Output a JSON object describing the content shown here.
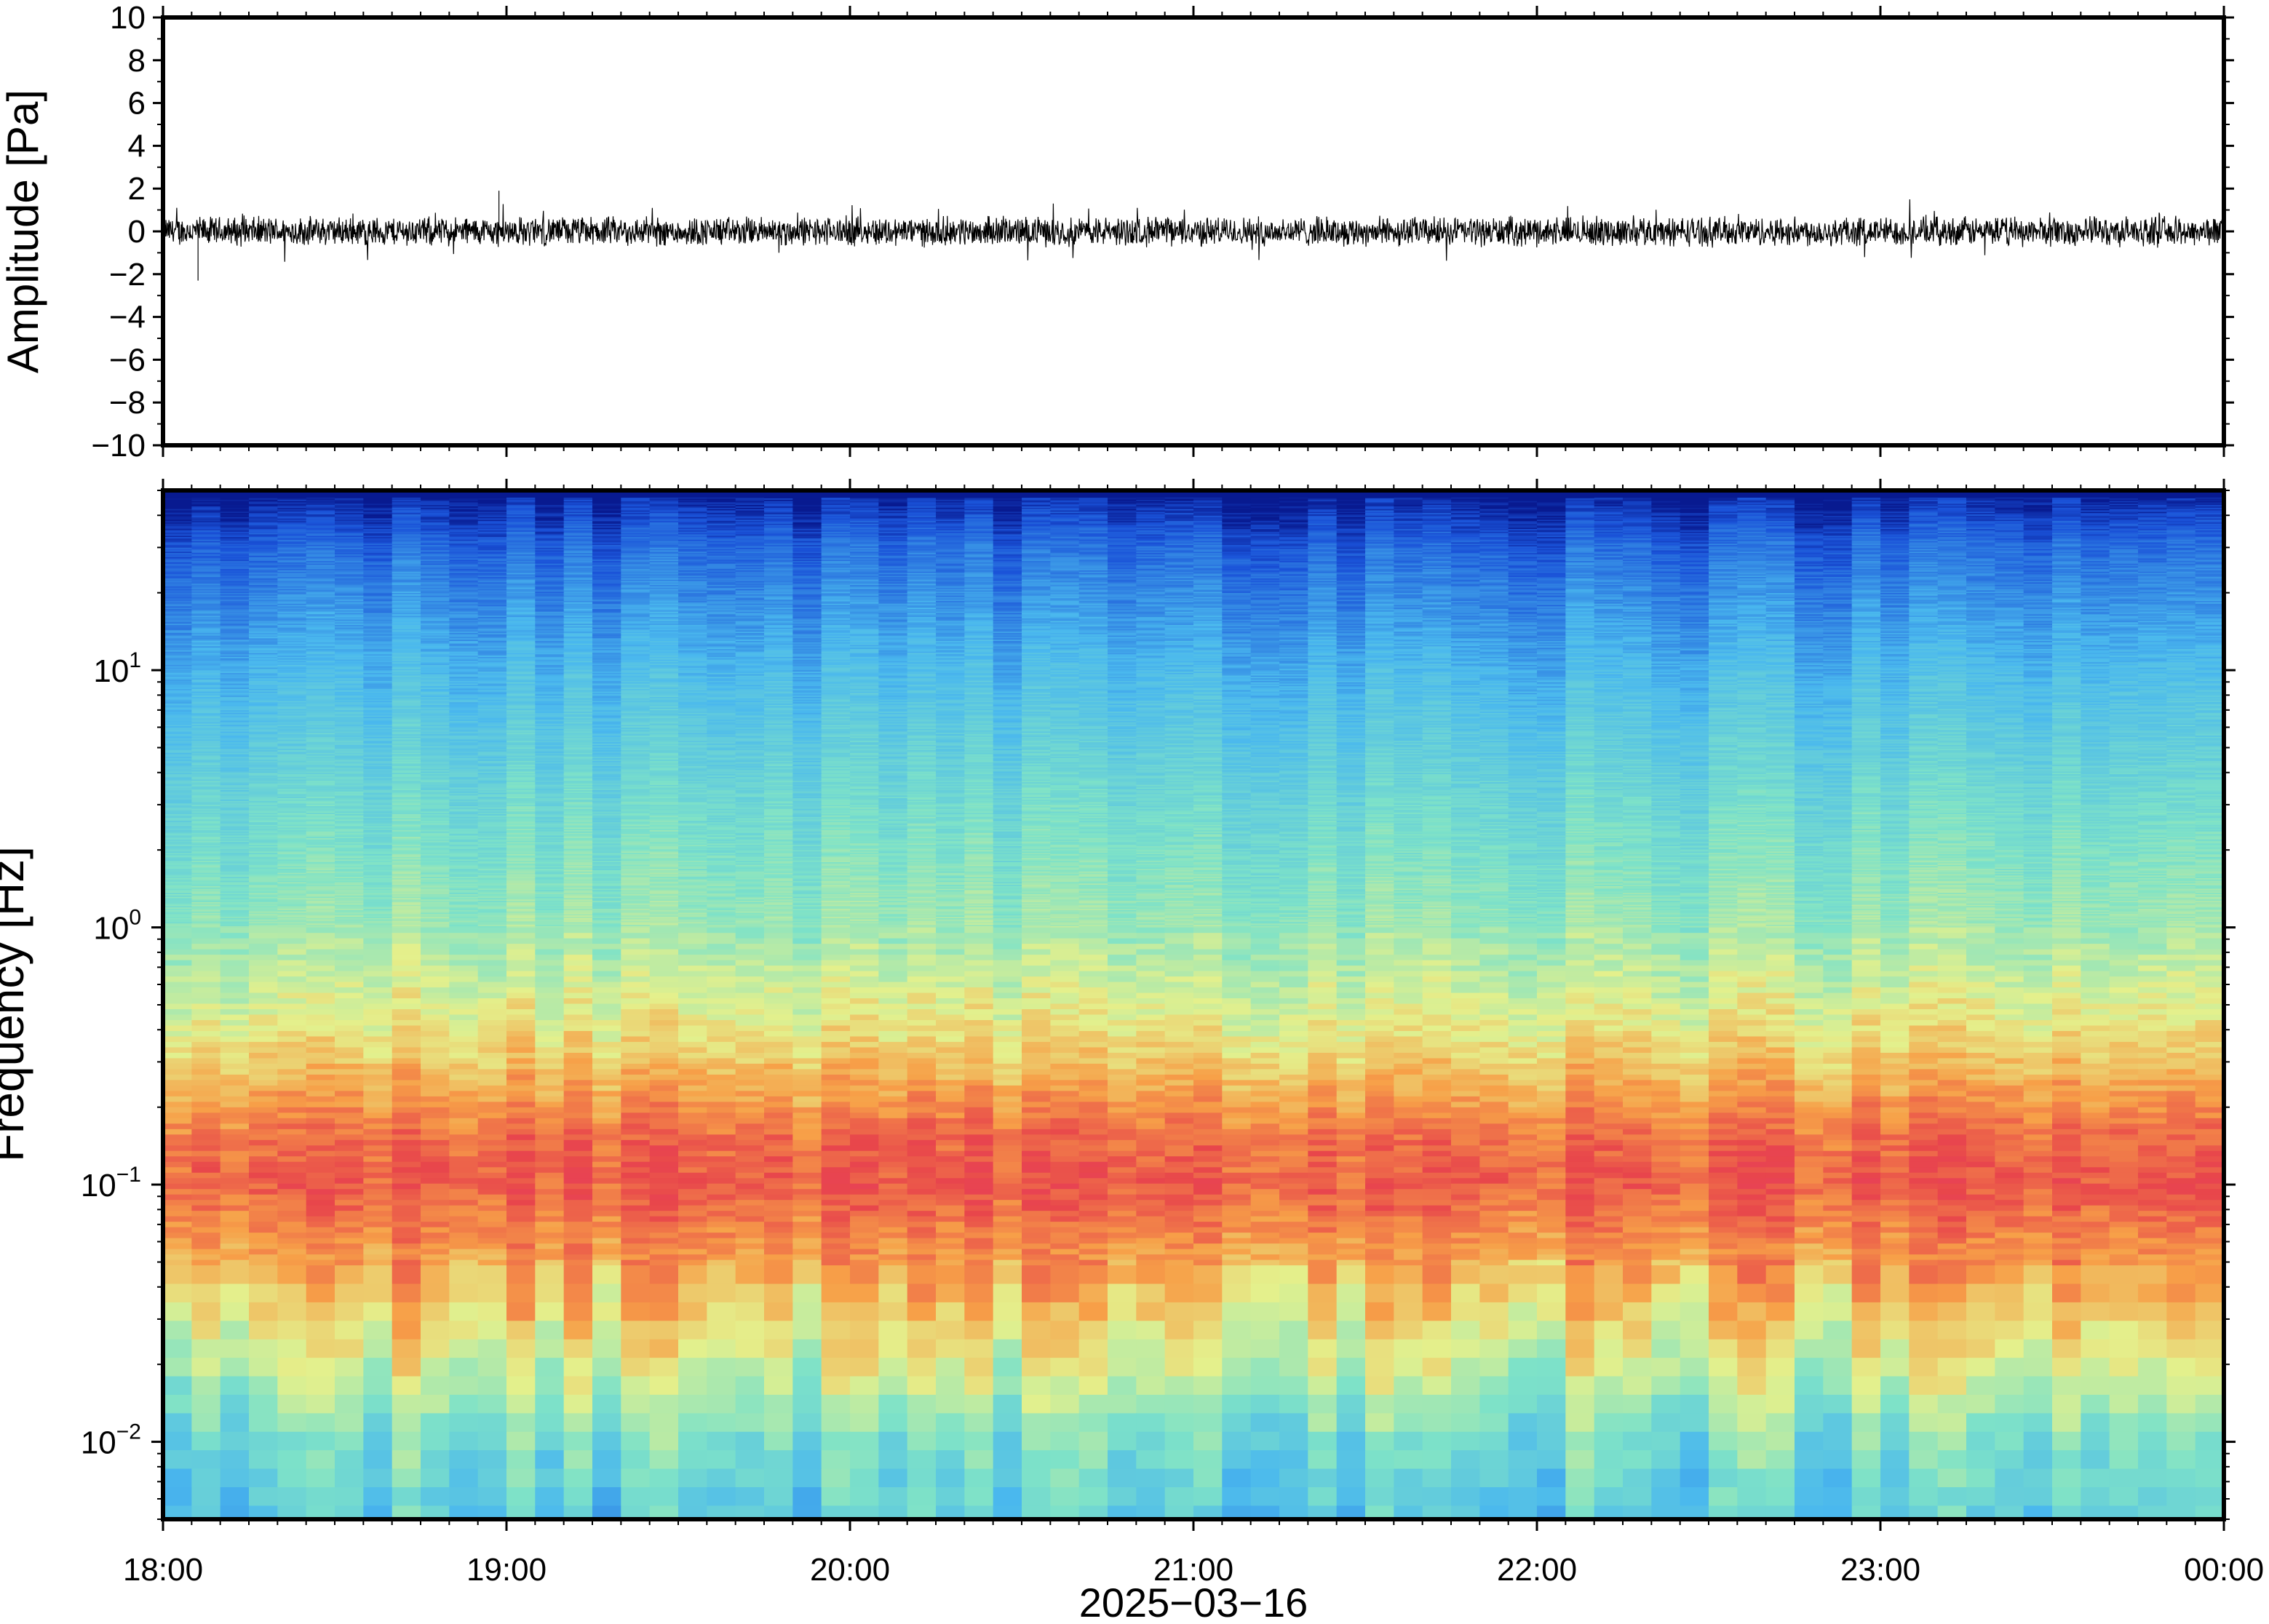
{
  "chart_data": [
    {
      "type": "line",
      "ylabel": "Amplitude [Pa]",
      "xlim": [
        "18:00",
        "00:00"
      ],
      "ylim": [
        -10,
        10
      ],
      "y_ticks": [
        10,
        8,
        6,
        4,
        2,
        0,
        -2,
        -4,
        -6,
        -8,
        -10
      ],
      "y_tick_labels": [
        "10",
        "8",
        "6",
        "4",
        "2",
        "0",
        "−2",
        "−4",
        "−6",
        "−8",
        "−10"
      ],
      "grid": false,
      "series_color": "#000000",
      "noise_envelope_pa": 0.6,
      "peak_amplitude_pa": [
        -2.3,
        1.9
      ]
    },
    {
      "type": "heatmap",
      "ylabel": "Frequency [Hz]",
      "xlabel": "2025−03−16",
      "y_scale": "log",
      "ylim_hz": [
        0.005,
        50
      ],
      "y_ticks_hz": [
        10,
        1,
        0.1,
        0.01
      ],
      "y_tick_labels": [
        {
          "base": "10",
          "exp": "1"
        },
        {
          "base": "10",
          "exp": "0"
        },
        {
          "base": "10",
          "exp": "−1"
        },
        {
          "base": "10",
          "exp": "−2"
        }
      ],
      "x_tick_labels": [
        "18:00",
        "19:00",
        "20:00",
        "21:00",
        "22:00",
        "23:00",
        "00:00"
      ],
      "x_tick_hours": [
        18,
        19,
        20,
        21,
        22,
        23,
        24
      ],
      "colormap": "rainbow",
      "colors": {
        "high": "#e8464b",
        "mid_high": "#f7a048",
        "mid": "#e4f08c",
        "mid_low": "#7ee2c8",
        "low": "#4ab8ee",
        "lowest": "#1a52d8",
        "edge": "#081a90"
      },
      "band_profile": [
        {
          "freq_hz": 50,
          "level": 0.0
        },
        {
          "freq_hz": 30,
          "level": 0.12
        },
        {
          "freq_hz": 10,
          "level": 0.26
        },
        {
          "freq_hz": 3,
          "level": 0.38
        },
        {
          "freq_hz": 1,
          "level": 0.47
        },
        {
          "freq_hz": 0.4,
          "level": 0.6
        },
        {
          "freq_hz": 0.15,
          "level": 0.8
        },
        {
          "freq_hz": 0.1,
          "level": 0.83
        },
        {
          "freq_hz": 0.05,
          "level": 0.72
        },
        {
          "freq_hz": 0.02,
          "level": 0.55
        },
        {
          "freq_hz": 0.01,
          "level": 0.4
        },
        {
          "freq_hz": 0.005,
          "level": 0.32
        }
      ],
      "grid": false
    }
  ]
}
